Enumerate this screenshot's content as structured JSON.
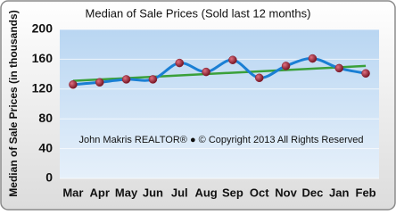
{
  "chart_data": {
    "type": "line",
    "title": "Median of Sale Prices (Sold last 12 months)",
    "y_label": "Median of Sale Prices (in thousands)",
    "annotation": "John Makris REALTOR®  ●  © Copyright 2013 All Rights Reserved",
    "categories": [
      "Mar",
      "Apr",
      "May",
      "Jun",
      "Jul",
      "Aug",
      "Sep",
      "Oct",
      "Nov",
      "Dec",
      "Jan",
      "Feb"
    ],
    "series": [
      {
        "color": "#1a7fd4",
        "marker_color": "#8b1a2a",
        "values": [
          126,
          129,
          133,
          133,
          155,
          143,
          159,
          135,
          151,
          161,
          148,
          141
        ]
      }
    ],
    "trend": {
      "color": "#3aa03a",
      "values": [
        131,
        151
      ]
    },
    "ylim": [
      0,
      200
    ],
    "yticks": [
      0,
      40,
      80,
      120,
      160,
      200
    ],
    "grid": true
  }
}
